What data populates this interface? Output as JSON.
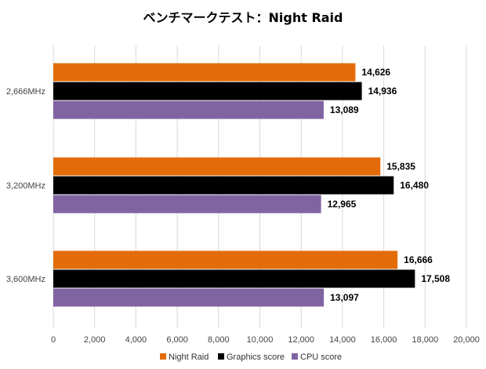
{
  "chart_data": {
    "type": "bar",
    "orientation": "horizontal",
    "title": "ベンチマークテスト：Night Raid",
    "categories": [
      "2,666MHz",
      "3,200MHz",
      "3,600MHz"
    ],
    "series": [
      {
        "name": "Night Raid",
        "color": "#E36C09",
        "values": [
          14626,
          15835,
          16666
        ],
        "labels": [
          "14,626",
          "15,835",
          "16,666"
        ]
      },
      {
        "name": "Graphics score",
        "color": "#000000",
        "values": [
          14936,
          16480,
          17508
        ],
        "labels": [
          "14,936",
          "16,480",
          "17,508"
        ]
      },
      {
        "name": "CPU score",
        "color": "#8064A2",
        "values": [
          13089,
          12965,
          13097
        ],
        "labels": [
          "13,089",
          "12,965",
          "13,097"
        ]
      }
    ],
    "xlim": [
      0,
      20000
    ],
    "xticks": [
      0,
      2000,
      4000,
      6000,
      8000,
      10000,
      12000,
      14000,
      16000,
      18000,
      20000
    ],
    "xtick_labels": [
      "0",
      "2,000",
      "4,000",
      "6,000",
      "8,000",
      "10,000",
      "12,000",
      "14,000",
      "16,000",
      "18,000",
      "20,000"
    ],
    "grid": true,
    "legend_position": "bottom"
  }
}
